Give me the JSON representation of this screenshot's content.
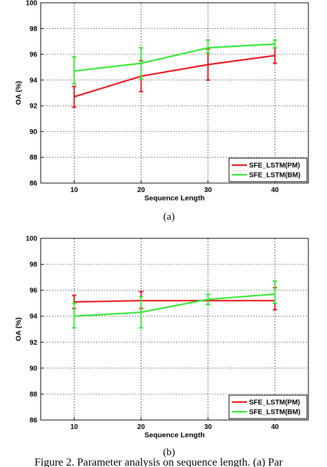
{
  "chart_data": [
    {
      "type": "line",
      "caption": "(a)",
      "xlabel": "Sequence Length",
      "ylabel": "OA (%)",
      "x": [
        10,
        20,
        30,
        40
      ],
      "xlim": [
        5,
        45
      ],
      "ylim": [
        86,
        100
      ],
      "xticks": [
        10,
        20,
        30,
        40
      ],
      "yticks": [
        86,
        88,
        90,
        92,
        94,
        96,
        98,
        100
      ],
      "grid": true,
      "legend_position": "bottom-right",
      "series": [
        {
          "name": "SFE_LSTM(PM)",
          "color": "#e8141b",
          "values": [
            92.7,
            94.3,
            95.2,
            95.9
          ],
          "err_low": [
            91.9,
            93.1,
            94.0,
            95.3
          ],
          "err_high": [
            93.5,
            95.5,
            96.4,
            96.5
          ]
        },
        {
          "name": "SFE_LSTM(BM)",
          "color": "#32e632",
          "values": [
            94.7,
            95.3,
            96.5,
            96.8
          ],
          "err_low": [
            93.7,
            94.1,
            96.1,
            96.5
          ],
          "err_high": [
            95.8,
            96.5,
            97.1,
            97.1
          ]
        }
      ]
    },
    {
      "type": "line",
      "caption": "(b)",
      "xlabel": "Sequence Length",
      "ylabel": "OA (%)",
      "x": [
        10,
        20,
        30,
        40
      ],
      "xlim": [
        5,
        45
      ],
      "ylim": [
        86,
        100
      ],
      "xticks": [
        10,
        20,
        30,
        40
      ],
      "yticks": [
        86,
        88,
        90,
        92,
        94,
        96,
        98,
        100
      ],
      "grid": true,
      "legend_position": "bottom-right",
      "series": [
        {
          "name": "SFE_LSTM(PM)",
          "color": "#e8141b",
          "values": [
            95.1,
            95.2,
            95.2,
            95.2
          ],
          "err_low": [
            94.6,
            94.6,
            95.2,
            94.5
          ],
          "err_high": [
            95.6,
            95.9,
            95.2,
            96.2
          ]
        },
        {
          "name": "SFE_LSTM(BM)",
          "color": "#32e632",
          "values": [
            94.0,
            94.3,
            95.3,
            95.7
          ],
          "err_low": [
            93.1,
            93.1,
            94.9,
            95.0
          ],
          "err_high": [
            95.0,
            95.5,
            95.7,
            96.7
          ]
        }
      ]
    }
  ],
  "figure_caption": "Figure 2. Parameter analysis on sequence length. (a) Par"
}
